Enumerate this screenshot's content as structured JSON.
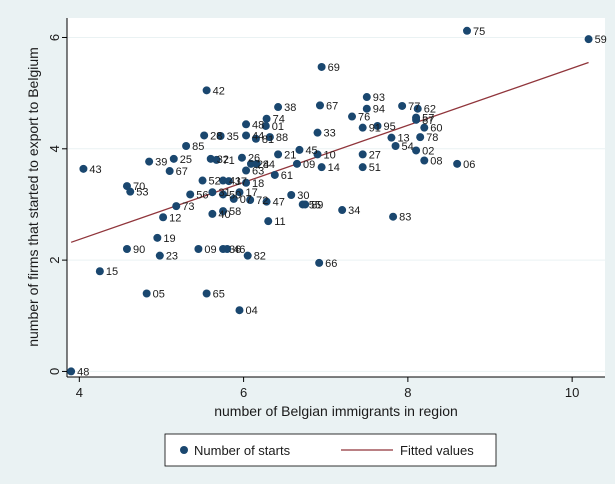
{
  "chart_data": {
    "type": "scatter",
    "xlabel": "number of Belgian immigrants in region",
    "ylabel": "number of firms that started to export to Belgium",
    "xlim": [
      3.85,
      10.4
    ],
    "ylim": [
      -0.1,
      6.35
    ],
    "x_ticks": [
      4,
      6,
      8,
      10
    ],
    "y_ticks": [
      0,
      2,
      4,
      6
    ],
    "grid": "horizontal",
    "legend_position": "bottom",
    "colors": {
      "points": "#1a476f",
      "fit_line": "#90353b",
      "plot_bg": "#ffffff",
      "outer_bg": "#eaf2f3"
    },
    "series": [
      {
        "name": "Number of starts",
        "kind": "scatter",
        "points": [
          {
            "label": "75",
            "x": 8.72,
            "y": 6.12
          },
          {
            "label": "59",
            "x": 10.2,
            "y": 5.97
          },
          {
            "label": "69",
            "x": 6.95,
            "y": 5.47
          },
          {
            "label": "42",
            "x": 5.55,
            "y": 5.05
          },
          {
            "label": "93",
            "x": 7.5,
            "y": 4.93
          },
          {
            "label": "38",
            "x": 6.42,
            "y": 4.75
          },
          {
            "label": "67",
            "x": 6.93,
            "y": 4.78
          },
          {
            "label": "94",
            "x": 7.5,
            "y": 4.72
          },
          {
            "label": "77",
            "x": 7.93,
            "y": 4.77
          },
          {
            "label": "62",
            "x": 8.12,
            "y": 4.72
          },
          {
            "label": "76",
            "x": 7.32,
            "y": 4.58
          },
          {
            "label": "57",
            "x": 8.1,
            "y": 4.56
          },
          {
            "label": "87",
            "x": 8.1,
            "y": 4.52
          },
          {
            "label": "74",
            "x": 6.28,
            "y": 4.54
          },
          {
            "label": "48",
            "x": 6.03,
            "y": 4.44
          },
          {
            "label": "01",
            "x": 6.27,
            "y": 4.41
          },
          {
            "label": "95",
            "x": 7.63,
            "y": 4.41
          },
          {
            "label": "91",
            "x": 7.45,
            "y": 4.38
          },
          {
            "label": "60",
            "x": 8.2,
            "y": 4.38
          },
          {
            "label": "33",
            "x": 6.9,
            "y": 4.29
          },
          {
            "label": "28",
            "x": 5.52,
            "y": 4.24
          },
          {
            "label": "35",
            "x": 5.72,
            "y": 4.23
          },
          {
            "label": "44",
            "x": 6.03,
            "y": 4.24
          },
          {
            "label": "81",
            "x": 6.15,
            "y": 4.18
          },
          {
            "label": "88",
            "x": 6.32,
            "y": 4.21
          },
          {
            "label": "13",
            "x": 7.8,
            "y": 4.2
          },
          {
            "label": "78",
            "x": 8.15,
            "y": 4.21
          },
          {
            "label": "85",
            "x": 5.3,
            "y": 4.05
          },
          {
            "label": "54",
            "x": 7.85,
            "y": 4.05
          },
          {
            "label": "02",
            "x": 8.1,
            "y": 3.97
          },
          {
            "label": "45",
            "x": 6.68,
            "y": 3.98
          },
          {
            "label": "21",
            "x": 6.42,
            "y": 3.9
          },
          {
            "label": "10",
            "x": 6.9,
            "y": 3.9
          },
          {
            "label": "27",
            "x": 7.45,
            "y": 3.9
          },
          {
            "label": "25",
            "x": 5.15,
            "y": 3.82
          },
          {
            "label": "39",
            "x": 4.85,
            "y": 3.77
          },
          {
            "label": "32",
            "x": 5.6,
            "y": 3.82
          },
          {
            "label": "71",
            "x": 5.67,
            "y": 3.8
          },
          {
            "label": "26",
            "x": 5.98,
            "y": 3.84
          },
          {
            "label": "08",
            "x": 8.2,
            "y": 3.79
          },
          {
            "label": "06",
            "x": 8.6,
            "y": 3.73
          },
          {
            "label": "24",
            "x": 6.09,
            "y": 3.73
          },
          {
            "label": "84",
            "x": 6.16,
            "y": 3.73
          },
          {
            "label": "09",
            "x": 6.65,
            "y": 3.73
          },
          {
            "label": "14",
            "x": 6.95,
            "y": 3.67
          },
          {
            "label": "51",
            "x": 7.45,
            "y": 3.67
          },
          {
            "label": "43",
            "x": 4.05,
            "y": 3.64
          },
          {
            "label": "67",
            "x": 5.1,
            "y": 3.6
          },
          {
            "label": "63",
            "x": 6.03,
            "y": 3.61
          },
          {
            "label": "61",
            "x": 6.38,
            "y": 3.53
          },
          {
            "label": "52",
            "x": 5.5,
            "y": 3.43
          },
          {
            "label": "41",
            "x": 5.75,
            "y": 3.43
          },
          {
            "label": "37",
            "x": 5.82,
            "y": 3.42
          },
          {
            "label": "18",
            "x": 6.03,
            "y": 3.39
          },
          {
            "label": "70",
            "x": 4.58,
            "y": 3.33
          },
          {
            "label": "53",
            "x": 4.62,
            "y": 3.23
          },
          {
            "label": "56",
            "x": 5.35,
            "y": 3.18
          },
          {
            "label": "31",
            "x": 5.62,
            "y": 3.22
          },
          {
            "label": "50",
            "x": 5.75,
            "y": 3.18
          },
          {
            "label": "17",
            "x": 5.95,
            "y": 3.22
          },
          {
            "label": "30",
            "x": 6.58,
            "y": 3.17
          },
          {
            "label": "07",
            "x": 5.88,
            "y": 3.1
          },
          {
            "label": "72",
            "x": 6.08,
            "y": 3.08
          },
          {
            "label": "47",
            "x": 6.28,
            "y": 3.05
          },
          {
            "label": "55",
            "x": 6.72,
            "y": 3.0
          },
          {
            "label": "89",
            "x": 6.75,
            "y": 3.0
          },
          {
            "label": "73",
            "x": 5.18,
            "y": 2.97
          },
          {
            "label": "34",
            "x": 7.2,
            "y": 2.9
          },
          {
            "label": "58",
            "x": 5.75,
            "y": 2.88
          },
          {
            "label": "40",
            "x": 5.62,
            "y": 2.83
          },
          {
            "label": "12",
            "x": 5.02,
            "y": 2.77
          },
          {
            "label": "83",
            "x": 7.82,
            "y": 2.78
          },
          {
            "label": "11",
            "x": 6.3,
            "y": 2.7
          },
          {
            "label": "19",
            "x": 4.95,
            "y": 2.4
          },
          {
            "label": "90",
            "x": 4.58,
            "y": 2.2
          },
          {
            "label": "09",
            "x": 5.45,
            "y": 2.2
          },
          {
            "label": "36",
            "x": 5.75,
            "y": 2.2
          },
          {
            "label": "46",
            "x": 5.8,
            "y": 2.2
          },
          {
            "label": "23",
            "x": 4.98,
            "y": 2.08
          },
          {
            "label": "82",
            "x": 6.05,
            "y": 2.08
          },
          {
            "label": "66",
            "x": 6.92,
            "y": 1.95
          },
          {
            "label": "15",
            "x": 4.25,
            "y": 1.8
          },
          {
            "label": "05",
            "x": 4.82,
            "y": 1.4
          },
          {
            "label": "65",
            "x": 5.55,
            "y": 1.4
          },
          {
            "label": "04",
            "x": 5.95,
            "y": 1.1
          },
          {
            "label": "48",
            "x": 3.9,
            "y": 0.0
          }
        ]
      },
      {
        "name": "Fitted values",
        "kind": "line",
        "x": [
          3.9,
          10.2
        ],
        "y": [
          2.32,
          5.55
        ]
      }
    ]
  }
}
